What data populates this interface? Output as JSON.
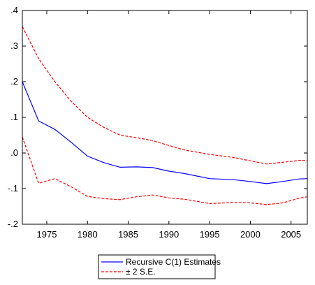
{
  "chart_data": {
    "type": "line",
    "xlim": [
      1972,
      2007
    ],
    "ylim": [
      -0.2,
      0.4
    ],
    "x_ticks": [
      1975,
      1980,
      1985,
      1990,
      1995,
      2000,
      2005
    ],
    "x_tick_labels": [
      "1975",
      "1980",
      "1985",
      "1990",
      "1995",
      "2000",
      "2005"
    ],
    "y_ticks": [
      -0.2,
      -0.1,
      0.0,
      0.1,
      0.2,
      0.3,
      0.4
    ],
    "y_tick_labels": [
      "-.2",
      "-.1",
      ".0",
      ".1",
      ".2",
      ".3",
      ".4"
    ],
    "grid": false,
    "legend_position": "bottom-center",
    "x": [
      1972,
      1974,
      1976,
      1978,
      1980,
      1982,
      1984,
      1986,
      1988,
      1990,
      1992,
      1995,
      1998,
      2000,
      2002,
      2004,
      2006,
      2007
    ],
    "series": [
      {
        "name": "Recursive C(1) Estimates",
        "color": "#0000ff",
        "dash": "solid",
        "values": [
          0.2,
          0.09,
          0.066,
          0.03,
          -0.009,
          -0.027,
          -0.04,
          -0.039,
          -0.041,
          -0.051,
          -0.058,
          -0.072,
          -0.075,
          -0.08,
          -0.086,
          -0.08,
          -0.073,
          -0.072
        ]
      },
      {
        "name": "± 2 S.E.",
        "color": "#ff0000",
        "dash": "dashed",
        "values": [
          0.355,
          0.265,
          0.2,
          0.145,
          0.1,
          0.072,
          0.05,
          0.043,
          0.035,
          0.021,
          0.008,
          -0.004,
          -0.013,
          -0.022,
          -0.031,
          -0.026,
          -0.021,
          -0.021
        ]
      },
      {
        "name": "",
        "color": "#ff0000",
        "dash": "dashed",
        "values": [
          0.045,
          -0.085,
          -0.072,
          -0.095,
          -0.122,
          -0.128,
          -0.131,
          -0.123,
          -0.118,
          -0.126,
          -0.13,
          -0.142,
          -0.139,
          -0.14,
          -0.145,
          -0.14,
          -0.127,
          -0.123
        ]
      }
    ],
    "legend": [
      {
        "label": "Recursive C(1) Estimates",
        "color": "#0000ff",
        "dash": "solid"
      },
      {
        "label": "± 2 S.E.",
        "color": "#ff0000",
        "dash": "dashed"
      }
    ]
  }
}
